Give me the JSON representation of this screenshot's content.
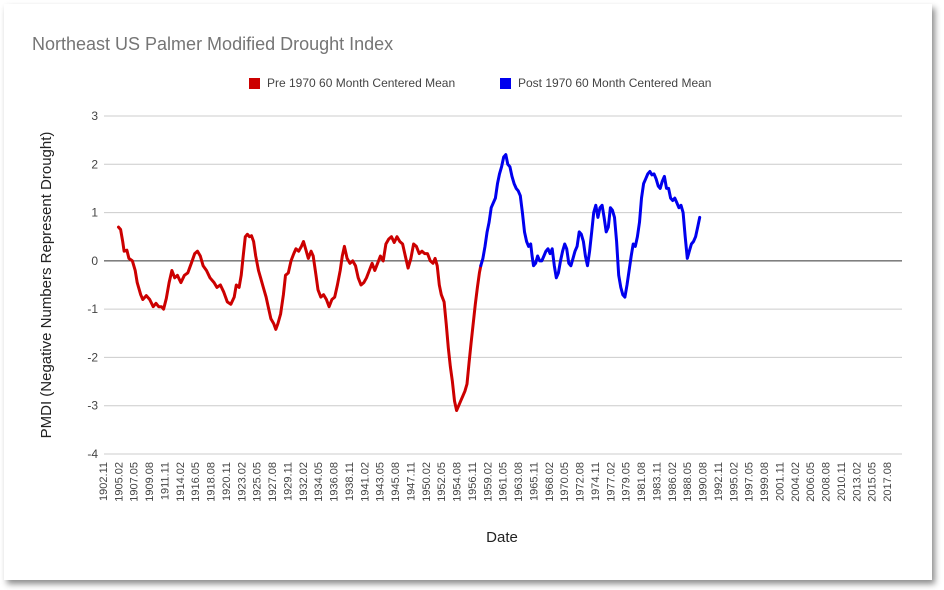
{
  "chart_data": {
    "type": "line",
    "title": "Northeast US Palmer Modified Drought Index",
    "xlabel": "Date",
    "ylabel": "PMDI (Negative Numbers Represent Drought)",
    "ylim": [
      -4,
      3
    ],
    "yticks": [
      3,
      2,
      1,
      0,
      -1,
      -2,
      -3,
      -4
    ],
    "xlim": [
      1902.9,
      2018.1
    ],
    "xtick_labels": [
      "1902.11",
      "1905.02",
      "1907.05",
      "1909.08",
      "1911.11",
      "1914.02",
      "1916.05",
      "1918.08",
      "1920.11",
      "1923.02",
      "1925.05",
      "1927.08",
      "1929.11",
      "1932.02",
      "1934.05",
      "1936.08",
      "1938.11",
      "1941.02",
      "1943.05",
      "1945.08",
      "1947.11",
      "1950.02",
      "1952.05",
      "1954.08",
      "1956.11",
      "1959.02",
      "1961.05",
      "1963.08",
      "1965.11",
      "1968.02",
      "1970.05",
      "1972.08",
      "1974.11",
      "1977.02",
      "1979.05",
      "1981.08",
      "1983.11",
      "1986.02",
      "1988.05",
      "1990.08",
      "1992.11",
      "1995.02",
      "1997.05",
      "1999.08",
      "2001.11",
      "2004.02",
      "2006.05",
      "2008.08",
      "2010.11",
      "2013.02",
      "2015.05",
      "2017.08"
    ],
    "grid": true,
    "legend_position": "top",
    "series": [
      {
        "name": "Pre 1970 60 Month Centered Mean",
        "color": "#cc0000",
        "points": [
          [
            1905.0,
            0.7
          ],
          [
            1905.3,
            0.65
          ],
          [
            1905.6,
            0.4
          ],
          [
            1905.8,
            0.2
          ],
          [
            1906.2,
            0.22
          ],
          [
            1906.5,
            0.05
          ],
          [
            1907.0,
            0.0
          ],
          [
            1907.4,
            -0.2
          ],
          [
            1907.7,
            -0.45
          ],
          [
            1908.2,
            -0.7
          ],
          [
            1908.5,
            -0.8
          ],
          [
            1909.0,
            -0.72
          ],
          [
            1909.5,
            -0.8
          ],
          [
            1910.0,
            -0.95
          ],
          [
            1910.4,
            -0.88
          ],
          [
            1910.8,
            -0.95
          ],
          [
            1911.2,
            -0.95
          ],
          [
            1911.5,
            -1.0
          ],
          [
            1911.9,
            -0.78
          ],
          [
            1912.3,
            -0.45
          ],
          [
            1912.7,
            -0.2
          ],
          [
            1913.1,
            -0.35
          ],
          [
            1913.5,
            -0.3
          ],
          [
            1914.0,
            -0.45
          ],
          [
            1914.5,
            -0.3
          ],
          [
            1915.0,
            -0.25
          ],
          [
            1915.5,
            -0.05
          ],
          [
            1916.0,
            0.15
          ],
          [
            1916.4,
            0.2
          ],
          [
            1916.8,
            0.1
          ],
          [
            1917.2,
            -0.1
          ],
          [
            1917.7,
            -0.2
          ],
          [
            1918.2,
            -0.35
          ],
          [
            1918.8,
            -0.45
          ],
          [
            1919.2,
            -0.55
          ],
          [
            1919.7,
            -0.5
          ],
          [
            1920.2,
            -0.65
          ],
          [
            1920.7,
            -0.85
          ],
          [
            1921.2,
            -0.9
          ],
          [
            1921.7,
            -0.75
          ],
          [
            1922.0,
            -0.5
          ],
          [
            1922.4,
            -0.55
          ],
          [
            1922.7,
            -0.3
          ],
          [
            1923.0,
            0.1
          ],
          [
            1923.3,
            0.5
          ],
          [
            1923.6,
            0.55
          ],
          [
            1923.9,
            0.5
          ],
          [
            1924.2,
            0.52
          ],
          [
            1924.5,
            0.4
          ],
          [
            1924.8,
            0.1
          ],
          [
            1925.2,
            -0.2
          ],
          [
            1925.5,
            -0.35
          ],
          [
            1925.9,
            -0.55
          ],
          [
            1926.3,
            -0.75
          ],
          [
            1926.6,
            -0.95
          ],
          [
            1927.0,
            -1.2
          ],
          [
            1927.4,
            -1.3
          ],
          [
            1927.7,
            -1.42
          ],
          [
            1928.0,
            -1.3
          ],
          [
            1928.4,
            -1.1
          ],
          [
            1928.8,
            -0.7
          ],
          [
            1929.1,
            -0.3
          ],
          [
            1929.5,
            -0.25
          ],
          [
            1929.9,
            0.0
          ],
          [
            1930.3,
            0.15
          ],
          [
            1930.6,
            0.25
          ],
          [
            1931.0,
            0.2
          ],
          [
            1931.4,
            0.3
          ],
          [
            1931.7,
            0.4
          ],
          [
            1932.0,
            0.25
          ],
          [
            1932.4,
            0.05
          ],
          [
            1932.8,
            0.2
          ],
          [
            1933.1,
            0.1
          ],
          [
            1933.5,
            -0.3
          ],
          [
            1933.8,
            -0.6
          ],
          [
            1934.2,
            -0.75
          ],
          [
            1934.6,
            -0.7
          ],
          [
            1935.0,
            -0.8
          ],
          [
            1935.4,
            -0.95
          ],
          [
            1935.8,
            -0.8
          ],
          [
            1936.2,
            -0.75
          ],
          [
            1936.6,
            -0.5
          ],
          [
            1937.0,
            -0.2
          ],
          [
            1937.3,
            0.1
          ],
          [
            1937.6,
            0.3
          ],
          [
            1938.0,
            0.05
          ],
          [
            1938.4,
            -0.05
          ],
          [
            1938.8,
            0.0
          ],
          [
            1939.2,
            -0.1
          ],
          [
            1939.6,
            -0.35
          ],
          [
            1940.0,
            -0.5
          ],
          [
            1940.4,
            -0.45
          ],
          [
            1940.8,
            -0.35
          ],
          [
            1941.2,
            -0.2
          ],
          [
            1941.6,
            -0.05
          ],
          [
            1942.0,
            -0.2
          ],
          [
            1942.4,
            -0.05
          ],
          [
            1942.8,
            0.1
          ],
          [
            1943.2,
            0.0
          ],
          [
            1943.6,
            0.35
          ],
          [
            1944.0,
            0.45
          ],
          [
            1944.4,
            0.5
          ],
          [
            1944.8,
            0.38
          ],
          [
            1945.2,
            0.5
          ],
          [
            1945.6,
            0.4
          ],
          [
            1946.0,
            0.35
          ],
          [
            1946.4,
            0.1
          ],
          [
            1946.8,
            -0.15
          ],
          [
            1947.2,
            0.05
          ],
          [
            1947.6,
            0.35
          ],
          [
            1948.0,
            0.3
          ],
          [
            1948.4,
            0.15
          ],
          [
            1948.8,
            0.2
          ],
          [
            1949.2,
            0.15
          ],
          [
            1949.6,
            0.15
          ],
          [
            1950.0,
            0.0
          ],
          [
            1950.4,
            -0.05
          ],
          [
            1950.7,
            0.05
          ],
          [
            1951.0,
            -0.1
          ],
          [
            1951.3,
            -0.5
          ],
          [
            1951.6,
            -0.7
          ],
          [
            1952.0,
            -0.85
          ],
          [
            1952.3,
            -1.3
          ],
          [
            1952.6,
            -1.8
          ],
          [
            1952.9,
            -2.2
          ],
          [
            1953.2,
            -2.5
          ],
          [
            1953.5,
            -2.9
          ],
          [
            1953.8,
            -3.1
          ],
          [
            1954.1,
            -3.0
          ],
          [
            1954.4,
            -2.9
          ],
          [
            1954.7,
            -2.8
          ],
          [
            1955.0,
            -2.7
          ],
          [
            1955.3,
            -2.55
          ],
          [
            1955.6,
            -2.1
          ],
          [
            1955.9,
            -1.7
          ],
          [
            1956.2,
            -1.3
          ],
          [
            1956.5,
            -0.9
          ],
          [
            1956.8,
            -0.55
          ],
          [
            1957.1,
            -0.25
          ],
          [
            1957.3,
            -0.1
          ]
        ]
      },
      {
        "name": "Post 1970 60 Month Centered Mean",
        "color": "#0000ee",
        "points": [
          [
            1957.3,
            -0.1
          ],
          [
            1957.6,
            0.05
          ],
          [
            1957.9,
            0.3
          ],
          [
            1958.2,
            0.6
          ],
          [
            1958.5,
            0.8
          ],
          [
            1958.8,
            1.1
          ],
          [
            1959.1,
            1.2
          ],
          [
            1959.4,
            1.3
          ],
          [
            1959.7,
            1.6
          ],
          [
            1960.0,
            1.8
          ],
          [
            1960.3,
            1.95
          ],
          [
            1960.6,
            2.15
          ],
          [
            1960.9,
            2.2
          ],
          [
            1961.2,
            2.0
          ],
          [
            1961.5,
            1.95
          ],
          [
            1961.8,
            1.75
          ],
          [
            1962.1,
            1.6
          ],
          [
            1962.4,
            1.5
          ],
          [
            1962.7,
            1.45
          ],
          [
            1963.0,
            1.35
          ],
          [
            1963.3,
            1.0
          ],
          [
            1963.6,
            0.6
          ],
          [
            1963.9,
            0.4
          ],
          [
            1964.2,
            0.3
          ],
          [
            1964.5,
            0.35
          ],
          [
            1964.7,
            0.1
          ],
          [
            1964.9,
            -0.1
          ],
          [
            1965.2,
            -0.05
          ],
          [
            1965.5,
            0.1
          ],
          [
            1965.8,
            0.0
          ],
          [
            1966.1,
            0.0
          ],
          [
            1966.4,
            0.1
          ],
          [
            1966.7,
            0.2
          ],
          [
            1967.0,
            0.25
          ],
          [
            1967.3,
            0.15
          ],
          [
            1967.6,
            0.25
          ],
          [
            1967.9,
            -0.1
          ],
          [
            1968.2,
            -0.35
          ],
          [
            1968.5,
            -0.25
          ],
          [
            1968.8,
            0.0
          ],
          [
            1969.1,
            0.2
          ],
          [
            1969.4,
            0.35
          ],
          [
            1969.7,
            0.25
          ],
          [
            1970.0,
            -0.05
          ],
          [
            1970.3,
            -0.1
          ],
          [
            1970.6,
            0.05
          ],
          [
            1970.9,
            0.2
          ],
          [
            1971.2,
            0.3
          ],
          [
            1971.5,
            0.6
          ],
          [
            1971.8,
            0.55
          ],
          [
            1972.1,
            0.4
          ],
          [
            1972.4,
            0.1
          ],
          [
            1972.7,
            -0.1
          ],
          [
            1973.0,
            0.2
          ],
          [
            1973.3,
            0.6
          ],
          [
            1973.6,
            1.0
          ],
          [
            1973.9,
            1.15
          ],
          [
            1974.2,
            0.9
          ],
          [
            1974.5,
            1.1
          ],
          [
            1974.8,
            1.15
          ],
          [
            1975.1,
            0.9
          ],
          [
            1975.4,
            0.6
          ],
          [
            1975.7,
            0.7
          ],
          [
            1976.0,
            1.1
          ],
          [
            1976.3,
            1.05
          ],
          [
            1976.6,
            0.9
          ],
          [
            1976.9,
            0.4
          ],
          [
            1977.2,
            -0.3
          ],
          [
            1977.5,
            -0.55
          ],
          [
            1977.8,
            -0.7
          ],
          [
            1978.1,
            -0.75
          ],
          [
            1978.4,
            -0.5
          ],
          [
            1978.7,
            -0.2
          ],
          [
            1979.0,
            0.1
          ],
          [
            1979.3,
            0.35
          ],
          [
            1979.6,
            0.3
          ],
          [
            1979.9,
            0.5
          ],
          [
            1980.2,
            0.8
          ],
          [
            1980.5,
            1.3
          ],
          [
            1980.8,
            1.6
          ],
          [
            1981.1,
            1.7
          ],
          [
            1981.4,
            1.8
          ],
          [
            1981.7,
            1.85
          ],
          [
            1982.0,
            1.78
          ],
          [
            1982.3,
            1.8
          ],
          [
            1982.6,
            1.7
          ],
          [
            1982.9,
            1.55
          ],
          [
            1983.2,
            1.5
          ],
          [
            1983.5,
            1.65
          ],
          [
            1983.8,
            1.75
          ],
          [
            1984.1,
            1.5
          ],
          [
            1984.4,
            1.5
          ],
          [
            1984.7,
            1.3
          ],
          [
            1985.0,
            1.25
          ],
          [
            1985.3,
            1.3
          ],
          [
            1985.6,
            1.2
          ],
          [
            1985.9,
            1.1
          ],
          [
            1986.2,
            1.15
          ],
          [
            1986.5,
            1.0
          ],
          [
            1986.8,
            0.5
          ],
          [
            1987.1,
            0.05
          ],
          [
            1987.4,
            0.2
          ],
          [
            1987.7,
            0.35
          ],
          [
            1988.0,
            0.4
          ],
          [
            1988.3,
            0.5
          ],
          [
            1988.6,
            0.7
          ],
          [
            1988.9,
            0.9
          ]
        ]
      }
    ]
  }
}
